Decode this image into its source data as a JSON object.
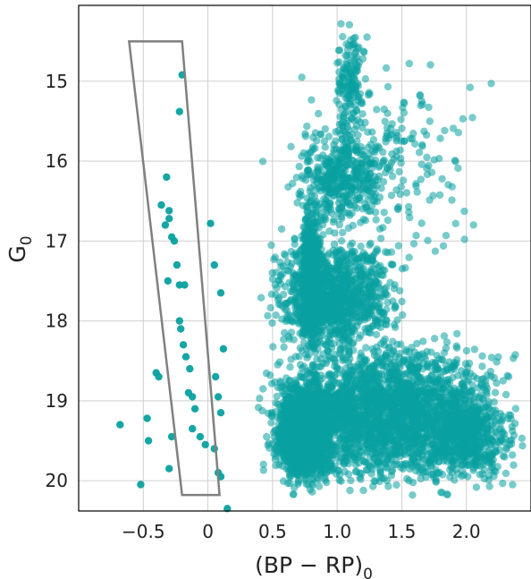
{
  "chart_data": {
    "type": "scatter",
    "xlabel": "(BP − RP)",
    "xlabel_subscript": "0",
    "ylabel": "G",
    "ylabel_subscript": "0",
    "xlim": [
      -1.0,
      2.5
    ],
    "ylim": [
      20.38,
      14.05
    ],
    "y_inverted": true,
    "grid": true,
    "x_ticks": [
      -0.5,
      0.0,
      0.5,
      1.0,
      1.5,
      2.0
    ],
    "x_tick_labels": [
      "−0.5",
      "0",
      "0.5",
      "1.0",
      "1.5",
      "2.0"
    ],
    "y_ticks": [
      15,
      16,
      17,
      18,
      19,
      20
    ],
    "y_tick_labels": [
      "15",
      "16",
      "17",
      "18",
      "19",
      "20"
    ],
    "series": [
      {
        "color": "#0aa0a0",
        "points_note_free": true,
        "points": [
          [
            -0.68,
            19.3
          ],
          [
            -0.52,
            20.05
          ],
          [
            -0.47,
            19.22
          ],
          [
            -0.46,
            19.5
          ],
          [
            -0.32,
            16.2
          ],
          [
            -0.36,
            16.55
          ],
          [
            -0.3,
            16.62
          ],
          [
            -0.3,
            16.72
          ],
          [
            -0.33,
            16.8
          ],
          [
            -0.28,
            16.95
          ],
          [
            -0.26,
            17.0
          ],
          [
            -0.24,
            17.3
          ],
          [
            -0.31,
            17.5
          ],
          [
            -0.22,
            17.55
          ],
          [
            -0.18,
            17.55
          ],
          [
            -0.22,
            18.0
          ],
          [
            -0.21,
            18.1
          ],
          [
            -0.19,
            18.3
          ],
          [
            -0.17,
            18.45
          ],
          [
            -0.14,
            18.6
          ],
          [
            -0.15,
            18.9
          ],
          [
            -0.12,
            18.95
          ],
          [
            -0.1,
            19.1
          ],
          [
            -0.12,
            19.35
          ],
          [
            -0.06,
            19.45
          ],
          [
            -0.02,
            19.55
          ],
          [
            -0.28,
            19.45
          ],
          [
            -0.3,
            19.85
          ],
          [
            -0.4,
            18.65
          ],
          [
            -0.38,
            18.7
          ],
          [
            -0.22,
            15.38
          ],
          [
            -0.2,
            14.92
          ],
          [
            0.02,
            16.78
          ],
          [
            0.05,
            17.3
          ],
          [
            0.1,
            17.65
          ],
          [
            0.12,
            18.35
          ],
          [
            0.05,
            19.6
          ],
          [
            0.08,
            19.9
          ],
          [
            0.1,
            19.95
          ],
          [
            0.15,
            20.35
          ],
          [
            0.08,
            18.95
          ],
          [
            0.1,
            19.15
          ],
          [
            0.06,
            18.7
          ]
        ],
        "cloud_regions": [
          {
            "x0": 0.25,
            "x1": 2.5,
            "y0": 18.0,
            "y1": 20.3,
            "n": 2400
          },
          {
            "x0": 0.45,
            "x1": 1.05,
            "y0": 18.6,
            "y1": 20.2,
            "n": 1500
          },
          {
            "x0": 0.55,
            "x1": 0.9,
            "y0": 19.0,
            "y1": 20.0,
            "n": 900
          },
          {
            "x0": 0.7,
            "x1": 0.9,
            "y0": 16.3,
            "y1": 18.6,
            "n": 700
          },
          {
            "x0": 0.35,
            "x1": 1.6,
            "y0": 16.8,
            "y1": 18.6,
            "n": 1100
          },
          {
            "x0": 0.6,
            "x1": 1.5,
            "y0": 15.4,
            "y1": 17.0,
            "n": 380
          },
          {
            "x0": 0.95,
            "x1": 1.25,
            "y0": 14.05,
            "y1": 16.0,
            "n": 140
          },
          {
            "x0": 0.3,
            "x1": 2.3,
            "y0": 14.4,
            "y1": 17.8,
            "n": 240
          },
          {
            "x0": 1.5,
            "x1": 2.5,
            "y0": 18.7,
            "y1": 20.2,
            "n": 500
          }
        ]
      }
    ],
    "selection_box": {
      "polygon": [
        [
          -0.61,
          14.5
        ],
        [
          -0.2,
          14.5
        ],
        [
          0.09,
          20.18
        ],
        [
          -0.2,
          20.18
        ]
      ],
      "stroke": "#808080"
    }
  }
}
